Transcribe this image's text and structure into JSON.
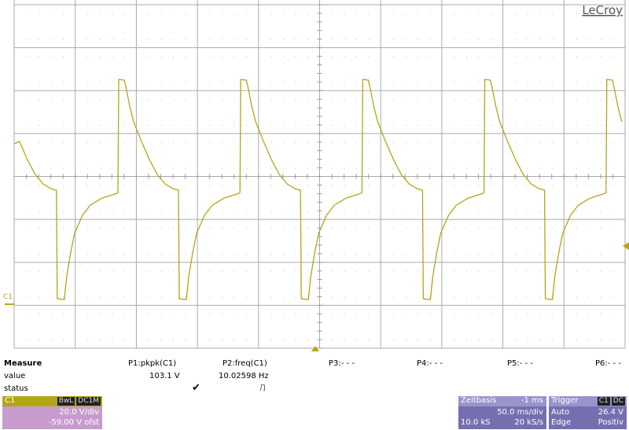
{
  "logo": "LeCroy",
  "channel_marker": "C1",
  "measure": {
    "title": "Measure",
    "row_labels": [
      "value",
      "status"
    ],
    "params": [
      {
        "name": "P1:pkpk(C1)",
        "value": "103.1 V"
      },
      {
        "name": "P2:freq(C1)",
        "value": "10.02598 Hz"
      },
      {
        "name": "P3:- - -"
      },
      {
        "name": "P4:- - -"
      },
      {
        "name": "P5:- - -"
      },
      {
        "name": "P6:- - -"
      }
    ]
  },
  "channel": {
    "name": "C1",
    "badges": [
      "BwL",
      "DC1M"
    ],
    "scale": "20.0 V/div",
    "offset": "-59.00 V ofst"
  },
  "timebase": {
    "title": "Zeitbasis",
    "delay": "-1 ms",
    "scale": "50.0 ms/div",
    "samples": "10.0 kS",
    "rate": "20 kS/s"
  },
  "trigger": {
    "title": "Trigger",
    "badges": [
      "C1",
      "DC"
    ],
    "mode": "Auto",
    "level": "26.4 V",
    "type": "Edge",
    "slope": "Positiv"
  }
}
